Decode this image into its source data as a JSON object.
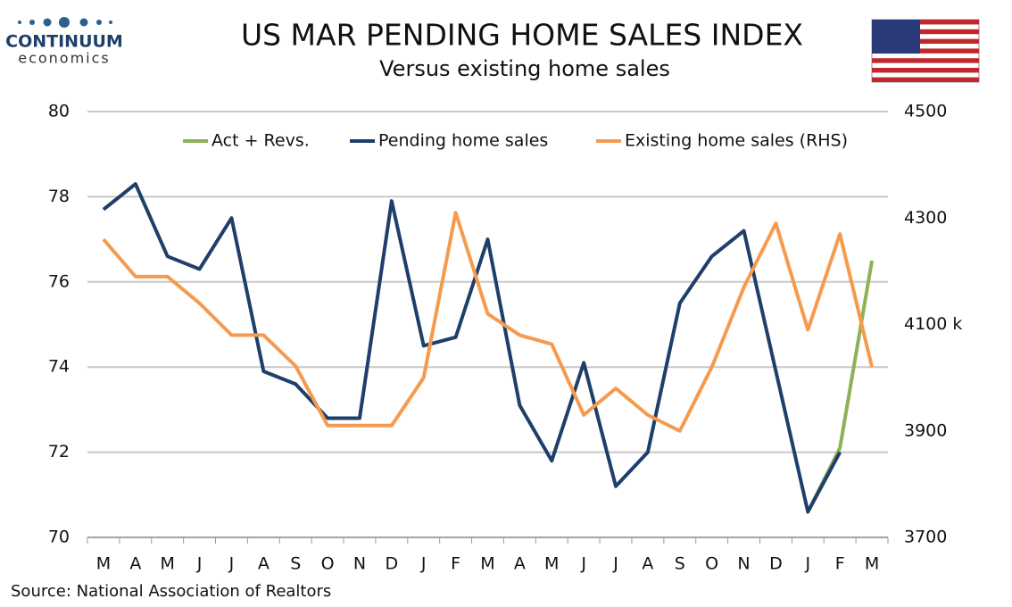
{
  "logo": {
    "name": "CONTINUUM",
    "tagline": "economics"
  },
  "chart_data": {
    "type": "line",
    "title": "US MAR PENDING HOME SALES INDEX",
    "subtitle": "Versus existing home sales",
    "source": "Source: National Association of Realtors",
    "categories": [
      "M",
      "A",
      "M",
      "J",
      "J",
      "A",
      "S",
      "O",
      "N",
      "D",
      "J",
      "F",
      "M",
      "A",
      "M",
      "J",
      "J",
      "A",
      "S",
      "O",
      "N",
      "D",
      "J",
      "F",
      "M"
    ],
    "series": [
      {
        "name": "Act + Revs.",
        "color": "#8db256",
        "axis": "y",
        "values": [
          null,
          null,
          null,
          null,
          null,
          null,
          null,
          null,
          null,
          null,
          null,
          null,
          null,
          null,
          null,
          null,
          null,
          null,
          null,
          null,
          null,
          null,
          70.6,
          72.1,
          76.5
        ]
      },
      {
        "name": "Pending home sales",
        "color": "#1f3f6b",
        "axis": "y",
        "values": [
          77.7,
          78.3,
          76.6,
          76.3,
          77.5,
          73.9,
          73.6,
          72.8,
          72.8,
          77.9,
          74.5,
          74.7,
          77.0,
          73.1,
          71.8,
          74.1,
          71.2,
          72.0,
          75.5,
          76.6,
          77.2,
          73.9,
          70.6,
          72.0,
          null
        ]
      },
      {
        "name": "Existing home sales (RHS)",
        "color": "#f59b4f",
        "axis": "y2",
        "values": [
          4260,
          4190,
          4190,
          4140,
          4080,
          4080,
          4022,
          3910,
          3910,
          3910,
          4000,
          4310,
          4120,
          4080,
          4063,
          3930,
          3980,
          3930,
          3900,
          4020,
          4170,
          4290,
          4090,
          4270,
          4020
        ]
      }
    ],
    "ylim": [
      70,
      80
    ],
    "yticks": [
      70,
      72,
      74,
      76,
      78,
      80
    ],
    "y2lim": [
      3700,
      4500
    ],
    "y2ticks": [
      3700,
      3900,
      {
        "value": 4100,
        "label": "4100 k"
      },
      4300,
      4500
    ],
    "grid": true,
    "legend": "top"
  }
}
